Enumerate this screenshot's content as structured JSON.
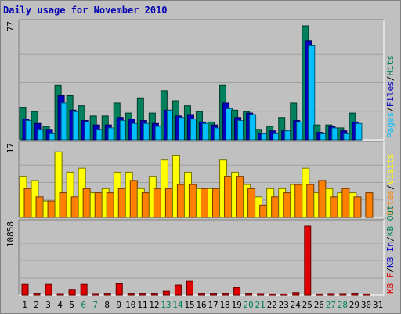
{
  "title": "Daily usage for November 2010",
  "colors": {
    "hits": "#00805c",
    "files": "#0000c0",
    "pages": "#00c0ff",
    "visits": "#ffff00",
    "sites": "#ff8000",
    "kbytes": "#e00000",
    "weekend": "#00805c",
    "weekday": "#000000"
  },
  "chart_data": [
    {
      "type": "bar",
      "panel": "hits-files-pages",
      "max_label": "77",
      "ylim": [
        0,
        77
      ],
      "categories": [
        "1",
        "2",
        "3",
        "4",
        "5",
        "6",
        "7",
        "8",
        "9",
        "10",
        "11",
        "12",
        "13",
        "14",
        "15",
        "16",
        "17",
        "18",
        "19",
        "20",
        "21",
        "22",
        "23",
        "24",
        "25",
        "26",
        "27",
        "28",
        "29",
        "30",
        "31"
      ],
      "weekend_days": [
        "6",
        "7",
        "13",
        "14",
        "20",
        "21",
        "27",
        "28"
      ],
      "legend": [
        "Pages",
        "Files",
        "Hits"
      ],
      "series": [
        {
          "name": "Hits",
          "values": [
            22,
            19,
            9,
            37,
            30,
            23,
            16,
            16,
            25,
            18,
            28,
            18,
            33,
            26,
            23,
            19,
            12,
            37,
            20,
            19,
            7,
            9,
            15,
            25,
            77,
            10,
            10,
            8,
            18,
            0,
            0
          ]
        },
        {
          "name": "Files",
          "values": [
            14,
            11,
            7,
            30,
            20,
            13,
            10,
            10,
            15,
            14,
            13,
            11,
            20,
            16,
            17,
            12,
            10,
            25,
            15,
            18,
            4,
            6,
            6,
            13,
            67,
            5,
            9,
            6,
            12,
            0,
            0
          ]
        },
        {
          "name": "Pages",
          "values": [
            13,
            7,
            4,
            25,
            19,
            12,
            7,
            8,
            13,
            11,
            11,
            9,
            20,
            15,
            14,
            11,
            8,
            21,
            13,
            17,
            4,
            4,
            6,
            12,
            64,
            4,
            8,
            4,
            11,
            0,
            0
          ]
        }
      ]
    },
    {
      "type": "bar",
      "panel": "visits-sites",
      "max_label": "17",
      "ylim": [
        0,
        17
      ],
      "categories": [
        "1",
        "2",
        "3",
        "4",
        "5",
        "6",
        "7",
        "8",
        "9",
        "10",
        "11",
        "12",
        "13",
        "14",
        "15",
        "16",
        "17",
        "18",
        "19",
        "20",
        "21",
        "22",
        "23",
        "24",
        "25",
        "26",
        "27",
        "28",
        "29",
        "30",
        "31"
      ],
      "legend": [
        "Sites",
        "Visits"
      ],
      "series": [
        {
          "name": "Visits",
          "values": [
            10,
            9,
            4,
            16,
            11,
            12,
            6,
            7,
            11,
            11,
            7,
            10,
            14,
            15,
            11,
            7,
            7,
            14,
            11,
            8,
            5,
            7,
            7,
            8,
            12,
            6,
            7,
            6,
            6,
            0,
            0
          ]
        },
        {
          "name": "Sites",
          "values": [
            7,
            5,
            4,
            6,
            5,
            7,
            6,
            6,
            7,
            9,
            6,
            7,
            7,
            8,
            8,
            7,
            7,
            10,
            10,
            7,
            3,
            5,
            6,
            8,
            8,
            9,
            5,
            7,
            5,
            6,
            0
          ]
        }
      ]
    },
    {
      "type": "bar",
      "panel": "kbytes",
      "max_label": "10858",
      "ylim": [
        0,
        10858
      ],
      "categories": [
        "1",
        "2",
        "3",
        "4",
        "5",
        "6",
        "7",
        "8",
        "9",
        "10",
        "11",
        "12",
        "13",
        "14",
        "15",
        "16",
        "17",
        "18",
        "19",
        "20",
        "21",
        "22",
        "23",
        "24",
        "25",
        "26",
        "27",
        "28",
        "29",
        "30",
        "31"
      ],
      "legend": [
        "KB F",
        "KB In",
        "KB Out"
      ],
      "series": [
        {
          "name": "KB F",
          "values": [
            1700,
            300,
            1700,
            250,
            900,
            1700,
            250,
            300,
            1800,
            300,
            300,
            300,
            600,
            1600,
            2200,
            300,
            300,
            300,
            1200,
            300,
            250,
            200,
            200,
            400,
            10858,
            200,
            250,
            250,
            300,
            200,
            0
          ]
        }
      ]
    }
  ]
}
